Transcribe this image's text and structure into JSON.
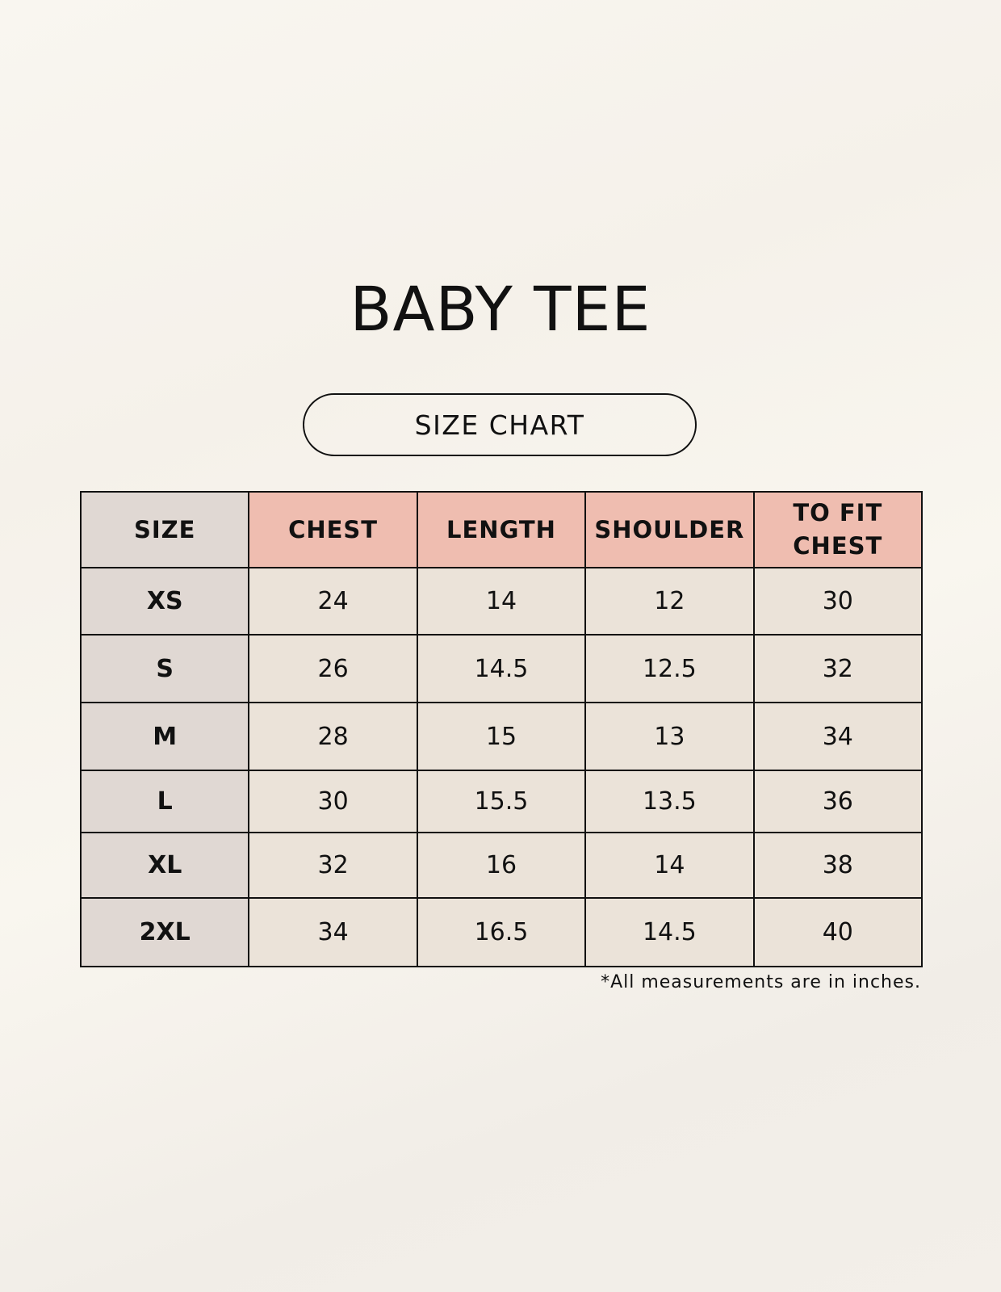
{
  "title": "BABY TEE",
  "subtitle": "SIZE CHART",
  "colors": {
    "header": "#efbdb0",
    "size_column": "#e0d8d3",
    "cells": "#ebe3d9",
    "background": "#f8f5ef"
  },
  "table": {
    "headers": [
      "SIZE",
      "CHEST",
      "LENGTH",
      "SHOULDER",
      "TO FIT CHEST"
    ],
    "rows": [
      [
        "XS",
        "24",
        "14",
        "12",
        "30"
      ],
      [
        "S",
        "26",
        "14.5",
        "12.5",
        "32"
      ],
      [
        "M",
        "28",
        "15",
        "13",
        "34"
      ],
      [
        "L",
        "30",
        "15.5",
        "13.5",
        "36"
      ],
      [
        "XL",
        "32",
        "16",
        "14",
        "38"
      ],
      [
        "2XL",
        "34",
        "16.5",
        "14.5",
        "40"
      ]
    ]
  },
  "footnote": "*All measurements are in inches."
}
